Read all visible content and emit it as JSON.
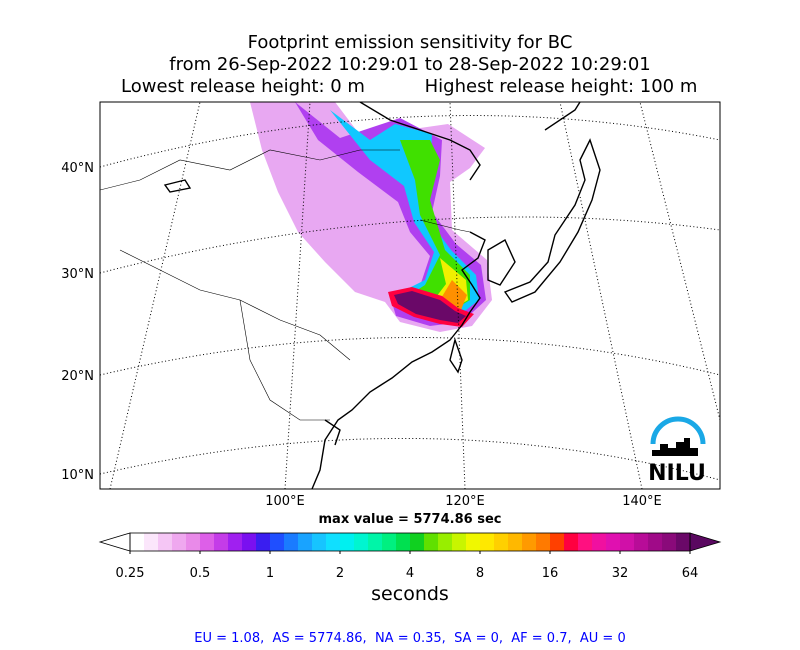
{
  "title_lines": [
    "Footprint emission sensitivity for BC",
    "from 26-Sep-2022 10:29:01 to 28-Sep-2022 10:29:01"
  ],
  "release": {
    "lowest": "Lowest release height: 0 m",
    "highest": "Highest release height: 100 m"
  },
  "map": {
    "lat_labels": [
      "40°N",
      "30°N",
      "20°N",
      "10°N"
    ],
    "lon_labels": [
      "100°E",
      "120°E",
      "140°E"
    ],
    "max_value": "max value = 5774.86 sec",
    "logo": "NILU"
  },
  "colorbar": {
    "type": "colorbar",
    "scale": "log",
    "lim": [
      0.25,
      64
    ],
    "ticks": [
      0.25,
      0.5,
      1,
      2,
      4,
      8,
      16,
      32,
      64
    ],
    "colors": [
      "#ffffff",
      "#fbe6fb",
      "#f5c6f5",
      "#efa8ef",
      "#e98ae9",
      "#dd5fe8",
      "#c43ce8",
      "#a020f0",
      "#7a10f0",
      "#3a1ef0",
      "#1f4fff",
      "#1a7bff",
      "#19a3ff",
      "#17c4ff",
      "#10dfff",
      "#00f0f0",
      "#00f5d0",
      "#00f5a8",
      "#00f080",
      "#00e050",
      "#10d020",
      "#60e000",
      "#98ee00",
      "#c8f500",
      "#f0f800",
      "#ffe800",
      "#ffd000",
      "#ffb800",
      "#ff9a00",
      "#ff7a00",
      "#ff4000",
      "#ff0040",
      "#ff1080",
      "#f010a0",
      "#e010b0",
      "#d010a8",
      "#b80c98",
      "#a00a88",
      "#8a0a7a",
      "#6a0868"
    ],
    "under_color": "#ffffff",
    "over_color": "#5a0860",
    "label": "seconds"
  },
  "footer": "EU = 1.08,  AS = 5774.86,  NA = 0.35,  SA = 0,  AF = 0.7,  AU = 0"
}
